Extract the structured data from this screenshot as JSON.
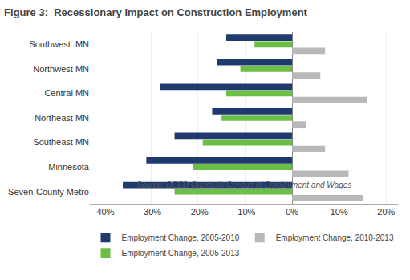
{
  "chart_data": {
    "type": "bar",
    "orientation": "horizontal",
    "title": "Figure 3:  Recessionary Impact on Construction Employment",
    "categories": [
      "Seven-County Metro",
      "Minnesota",
      "Southeast MN",
      "Northeast MN",
      "Central MN",
      "Northwest MN",
      "Southwest  MN"
    ],
    "series": [
      {
        "name": "Employment Change, 2010-2013",
        "color": "#B8B8B8",
        "values": [
          0.15,
          0.12,
          0.07,
          0.03,
          0.16,
          0.06,
          0.07
        ]
      },
      {
        "name": "Employment Change, 2005-2013",
        "color": "#6BBF45",
        "values": [
          -0.25,
          -0.21,
          -0.19,
          -0.15,
          -0.14,
          -0.11,
          -0.08
        ]
      },
      {
        "name": "Employment Change, 2005-2010",
        "color": "#1F3A6E",
        "values": [
          -0.36,
          -0.31,
          -0.25,
          -0.17,
          -0.28,
          -0.16,
          -0.14
        ]
      }
    ],
    "xlim": [
      -0.43,
      0.225
    ],
    "xticks": [
      {
        "value": -0.4,
        "label": "-40%"
      },
      {
        "value": -0.3,
        "label": "-30%"
      },
      {
        "value": -0.2,
        "label": "-20%"
      },
      {
        "value": -0.1,
        "label": "-10%"
      },
      {
        "value": 0.0,
        "label": "0%"
      },
      {
        "value": 0.1,
        "label": "10%"
      },
      {
        "value": 0.2,
        "label": "20%"
      }
    ],
    "grid": true,
    "legend": "bottom",
    "annotations": [
      "Source: DEED Quarterly Census of Employment and Wages"
    ]
  }
}
